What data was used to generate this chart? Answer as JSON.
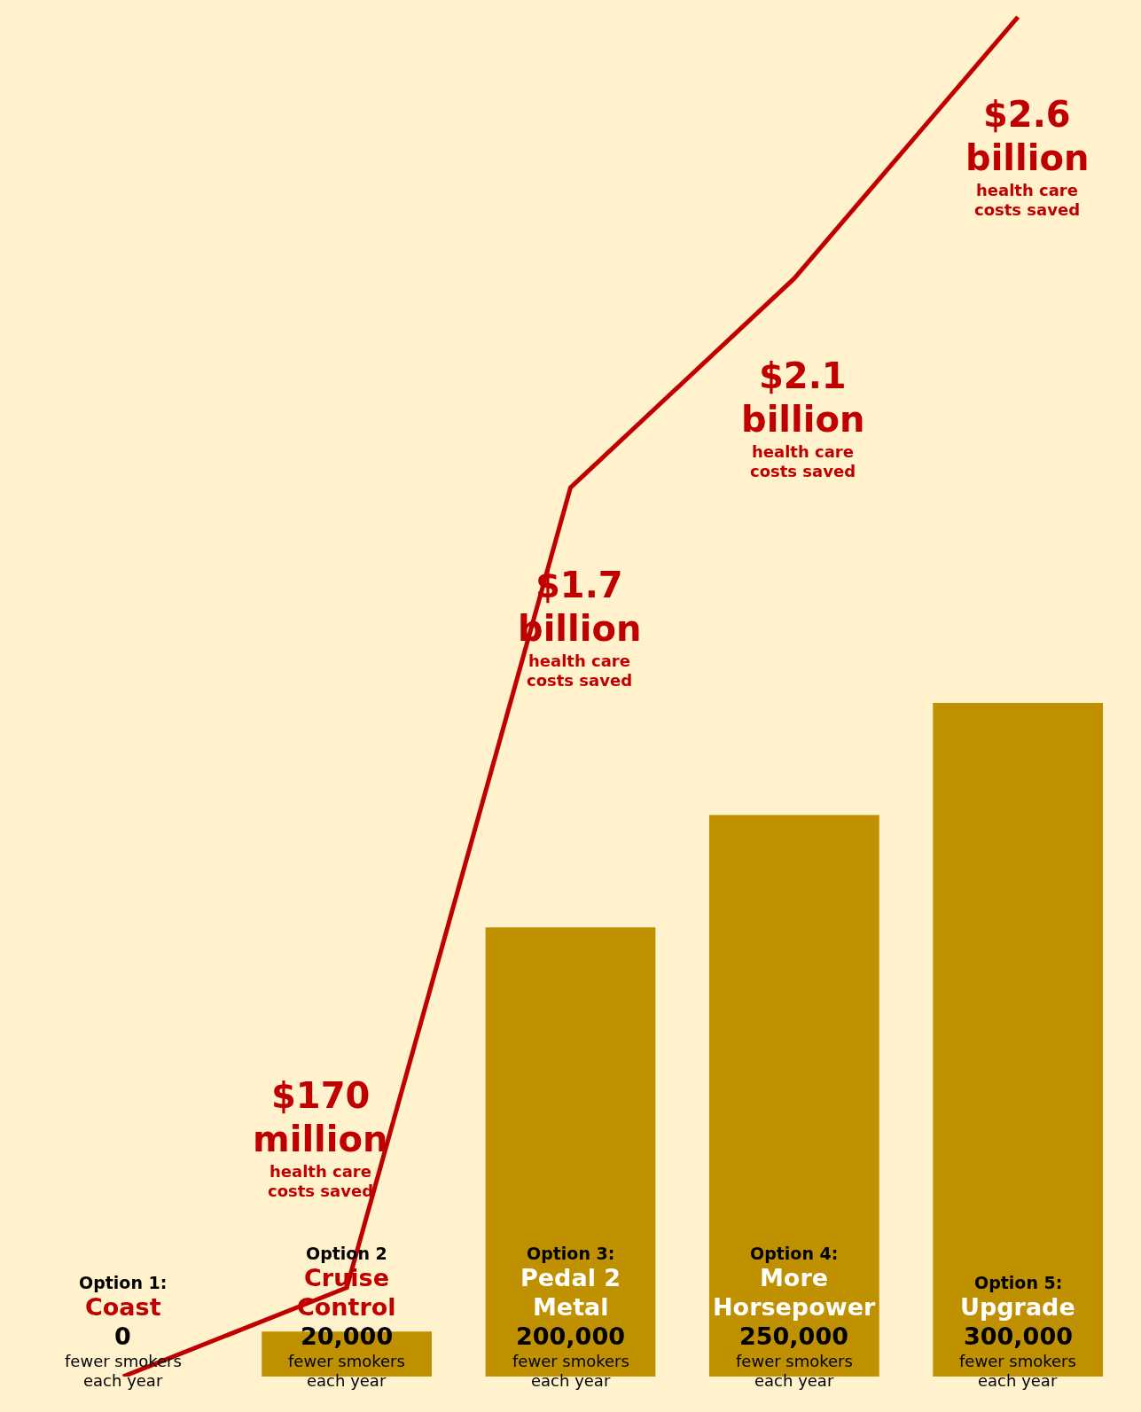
{
  "chart_data": {
    "type": "bar",
    "categories": [
      "Option 1:\nCoast",
      "Option 2\nCruise Control",
      "Option 3:\nPedal 2 Metal",
      "Option 4:\nMore Horsepower",
      "Option 5:\nUpgrade"
    ],
    "series": [
      {
        "color": "#bf9000",
        "values": [
          0,
          20000,
          200000,
          250000,
          300000
        ],
        "value_labels": [
          "0\nfewer smokers each year",
          "20,000\nfewer smokers each year",
          "200,000\nfewer smokers each year",
          "250,000\nfewer smokers each year",
          "300,000\nfewer smokers each year"
        ]
      },
      {
        "type": "line",
        "axis": "y2",
        "color": "#c00000",
        "values": [
          0,
          170000000,
          1700000000,
          2100000000,
          2600000000
        ],
        "value_labels": [
          null,
          "$170 million\nhealth care costs saved",
          "$1.7 billion\nhealth care costs saved",
          "$2.1 billion\nhealth care costs saved",
          "$2.6 billion\nhealth care costs saved"
        ]
      }
    ],
    "tick_labels": false,
    "marker": "none",
    "line_style": "solid"
  }
}
